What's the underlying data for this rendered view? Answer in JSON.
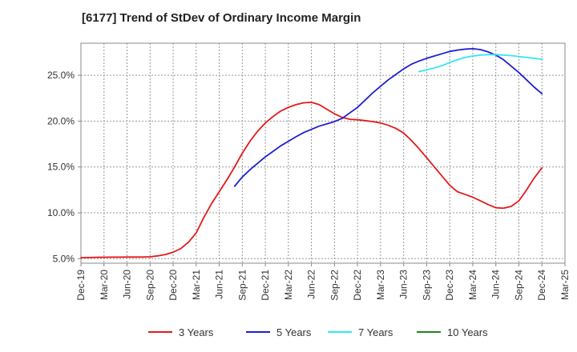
{
  "chart_data": {
    "type": "line",
    "title": "[6177]  Trend of StDev of Ordinary Income Margin",
    "xlabel": "",
    "ylabel": "",
    "x_ticks": [
      "Dec-19",
      "Mar-20",
      "Jun-20",
      "Sep-20",
      "Dec-20",
      "Mar-21",
      "Jun-21",
      "Sep-21",
      "Dec-21",
      "Mar-22",
      "Jun-22",
      "Sep-22",
      "Dec-22",
      "Mar-23",
      "Jun-23",
      "Sep-23",
      "Dec-23",
      "Mar-24",
      "Jun-24",
      "Sep-24",
      "Dec-24",
      "Mar-25"
    ],
    "y_ticks": [
      5.0,
      10.0,
      15.0,
      20.0,
      25.0
    ],
    "y_tick_labels": [
      "5.0%",
      "10.0%",
      "15.0%",
      "20.0%",
      "25.0%"
    ],
    "ylim": [
      4.5,
      28.5
    ],
    "grid": true,
    "legend_position": "bottom",
    "series": [
      {
        "name": "3 Years",
        "color": "#e31a1c",
        "points": [
          [
            "Dec-19",
            5.1
          ],
          [
            "Jan-20",
            5.12
          ],
          [
            "Feb-20",
            5.14
          ],
          [
            "Mar-20",
            5.15
          ],
          [
            "Apr-20",
            5.16
          ],
          [
            "May-20",
            5.16
          ],
          [
            "Jun-20",
            5.17
          ],
          [
            "Jul-20",
            5.17
          ],
          [
            "Aug-20",
            5.17
          ],
          [
            "Sep-20",
            5.2
          ],
          [
            "Oct-20",
            5.3
          ],
          [
            "Nov-20",
            5.45
          ],
          [
            "Dec-20",
            5.7
          ],
          [
            "Jan-21",
            6.1
          ],
          [
            "Feb-21",
            6.8
          ],
          [
            "Mar-21",
            7.8
          ],
          [
            "Apr-21",
            9.5
          ],
          [
            "May-21",
            11.0
          ],
          [
            "Jun-21",
            12.3
          ],
          [
            "Jul-21",
            13.6
          ],
          [
            "Aug-21",
            15.0
          ],
          [
            "Sep-21",
            16.5
          ],
          [
            "Oct-21",
            17.8
          ],
          [
            "Nov-21",
            18.9
          ],
          [
            "Dec-21",
            19.8
          ],
          [
            "Jan-22",
            20.5
          ],
          [
            "Feb-22",
            21.1
          ],
          [
            "Mar-22",
            21.5
          ],
          [
            "Apr-22",
            21.8
          ],
          [
            "May-22",
            22.0
          ],
          [
            "Jun-22",
            22.05
          ],
          [
            "Jul-22",
            21.8
          ],
          [
            "Aug-22",
            21.3
          ],
          [
            "Sep-22",
            20.8
          ],
          [
            "Oct-22",
            20.4
          ],
          [
            "Nov-22",
            20.2
          ],
          [
            "Dec-22",
            20.15
          ],
          [
            "Jan-23",
            20.05
          ],
          [
            "Feb-23",
            19.95
          ],
          [
            "Mar-23",
            19.8
          ],
          [
            "Apr-23",
            19.55
          ],
          [
            "May-23",
            19.2
          ],
          [
            "Jun-23",
            18.7
          ],
          [
            "Jul-23",
            17.9
          ],
          [
            "Aug-23",
            17.0
          ],
          [
            "Sep-23",
            16.0
          ],
          [
            "Oct-23",
            15.0
          ],
          [
            "Nov-23",
            14.0
          ],
          [
            "Dec-23",
            13.0
          ],
          [
            "Jan-24",
            12.3
          ],
          [
            "Feb-24",
            12.0
          ],
          [
            "Mar-24",
            11.7
          ],
          [
            "Apr-24",
            11.3
          ],
          [
            "May-24",
            10.9
          ],
          [
            "Jun-24",
            10.55
          ],
          [
            "Jul-24",
            10.5
          ],
          [
            "Aug-24",
            10.7
          ],
          [
            "Sep-24",
            11.3
          ],
          [
            "Oct-24",
            12.5
          ],
          [
            "Nov-24",
            13.8
          ],
          [
            "Dec-24",
            14.9
          ]
        ]
      },
      {
        "name": "5 Years",
        "color": "#1f1fd1",
        "points": [
          [
            "Aug-21",
            12.9
          ],
          [
            "Sep-21",
            13.9
          ],
          [
            "Oct-21",
            14.7
          ],
          [
            "Nov-21",
            15.4
          ],
          [
            "Dec-21",
            16.1
          ],
          [
            "Jan-22",
            16.7
          ],
          [
            "Feb-22",
            17.3
          ],
          [
            "Mar-22",
            17.8
          ],
          [
            "Apr-22",
            18.3
          ],
          [
            "May-22",
            18.75
          ],
          [
            "Jun-22",
            19.1
          ],
          [
            "Jul-22",
            19.45
          ],
          [
            "Aug-22",
            19.7
          ],
          [
            "Sep-22",
            19.95
          ],
          [
            "Oct-22",
            20.3
          ],
          [
            "Nov-22",
            20.9
          ],
          [
            "Dec-22",
            21.5
          ],
          [
            "Jan-23",
            22.3
          ],
          [
            "Feb-23",
            23.1
          ],
          [
            "Mar-23",
            23.8
          ],
          [
            "Apr-23",
            24.5
          ],
          [
            "May-23",
            25.1
          ],
          [
            "Jun-23",
            25.7
          ],
          [
            "Jul-23",
            26.2
          ],
          [
            "Aug-23",
            26.55
          ],
          [
            "Sep-23",
            26.85
          ],
          [
            "Oct-23",
            27.1
          ],
          [
            "Nov-23",
            27.35
          ],
          [
            "Dec-23",
            27.6
          ],
          [
            "Jan-24",
            27.75
          ],
          [
            "Feb-24",
            27.85
          ],
          [
            "Mar-24",
            27.9
          ],
          [
            "Apr-24",
            27.8
          ],
          [
            "May-24",
            27.55
          ],
          [
            "Jun-24",
            27.2
          ],
          [
            "Jul-24",
            26.7
          ],
          [
            "Aug-24",
            26.0
          ],
          [
            "Sep-24",
            25.3
          ],
          [
            "Oct-24",
            24.5
          ],
          [
            "Nov-24",
            23.7
          ],
          [
            "Dec-24",
            23.0
          ]
        ]
      },
      {
        "name": "7 Years",
        "color": "#33e6f2",
        "points": [
          [
            "Aug-23",
            25.4
          ],
          [
            "Sep-23",
            25.6
          ],
          [
            "Oct-23",
            25.8
          ],
          [
            "Nov-23",
            26.05
          ],
          [
            "Dec-23",
            26.4
          ],
          [
            "Jan-24",
            26.7
          ],
          [
            "Feb-24",
            26.95
          ],
          [
            "Mar-24",
            27.1
          ],
          [
            "Apr-24",
            27.2
          ],
          [
            "May-24",
            27.25
          ],
          [
            "Jun-24",
            27.25
          ],
          [
            "Jul-24",
            27.2
          ],
          [
            "Aug-24",
            27.15
          ],
          [
            "Sep-24",
            27.05
          ],
          [
            "Oct-24",
            26.95
          ],
          [
            "Nov-24",
            26.85
          ],
          [
            "Dec-24",
            26.75
          ]
        ]
      },
      {
        "name": "10 Years",
        "color": "#1a8a1a",
        "points": []
      }
    ]
  }
}
